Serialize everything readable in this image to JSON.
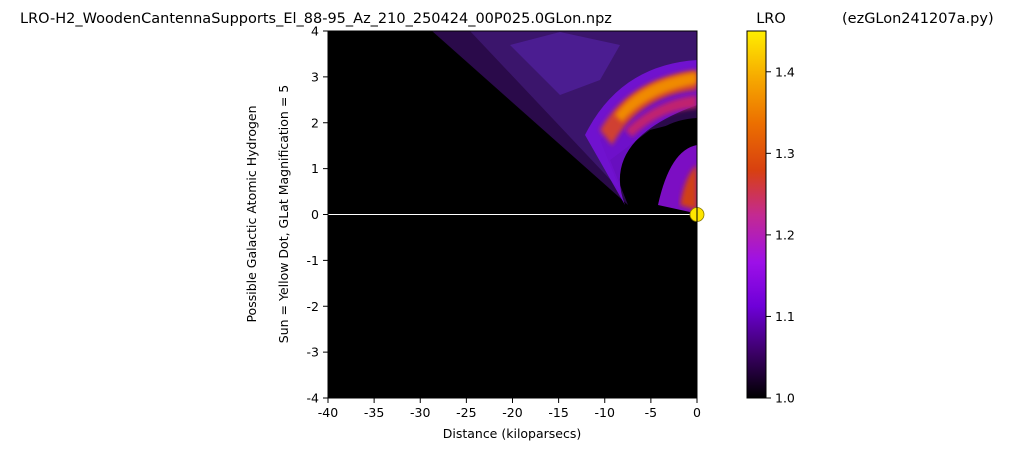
{
  "header": {
    "file_title": "LRO-H2_WoodenCantennaSupports_El_88-95_Az_210_250424_00P025.0GLon.npz",
    "colorbar_title": "LRO",
    "script_title": "(ezGLon241207a.py)"
  },
  "chart_data": {
    "type": "heatmap",
    "xlabel": "Distance (kiloparsecs)",
    "ylabel_lines": [
      "Possible Galactic Atomic Hydrogen",
      "Sun = Yellow Dot, GLat Magnification = 5"
    ],
    "xlim": [
      -40,
      0
    ],
    "ylim": [
      -4,
      4
    ],
    "x_ticks": [
      -40,
      -35,
      -30,
      -25,
      -20,
      -15,
      -10,
      -5,
      0
    ],
    "y_ticks": [
      -4,
      -3,
      -2,
      -1,
      0,
      1,
      2,
      3,
      4
    ],
    "colorbar": {
      "colormap": "gnuplot",
      "range": [
        1.0,
        1.45
      ],
      "ticks": [
        1.0,
        1.1,
        1.2,
        1.3,
        1.4
      ]
    },
    "sun_marker": {
      "x": 0,
      "y": 0,
      "color": "#ffe600"
    },
    "horizontal_line_y": 0,
    "background_color": "#000000"
  }
}
